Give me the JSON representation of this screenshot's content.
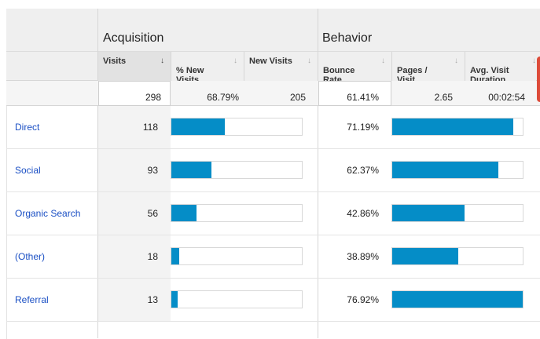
{
  "groups": {
    "acquisition": "Acquisition",
    "behavior": "Behavior"
  },
  "columns": {
    "visits": "Visits",
    "pct_new_visits": "% New\nVisits",
    "new_visits": "New Visits",
    "bounce_rate": "Bounce\nRate",
    "pages_visit": "Pages /\nVisit",
    "avg_visit_duration": "Avg. Visit\nDuration"
  },
  "totals": {
    "visits": "298",
    "pct_new_visits": "68.79%",
    "new_visits": "205",
    "bounce_rate": "61.41%",
    "pages_visit": "2.65",
    "avg_visit_duration": "00:02:54"
  },
  "rows": [
    {
      "label": "Direct",
      "visits": "118",
      "new_visits_share": 0.41,
      "bounce_rate": "71.19%",
      "bounce_share": 0.925
    },
    {
      "label": "Social",
      "visits": "93",
      "new_visits_share": 0.31,
      "bounce_rate": "62.37%",
      "bounce_share": 0.811
    },
    {
      "label": "Organic Search",
      "visits": "56",
      "new_visits_share": 0.19,
      "bounce_rate": "42.86%",
      "bounce_share": 0.557
    },
    {
      "label": "(Other)",
      "visits": "18",
      "new_visits_share": 0.06,
      "bounce_rate": "38.89%",
      "bounce_share": 0.506
    },
    {
      "label": "Referral",
      "visits": "13",
      "new_visits_share": 0.05,
      "bounce_rate": "76.92%",
      "bounce_share": 1.0
    }
  ],
  "colors": {
    "bar": "#058dc7",
    "link": "#1a4fc4",
    "header_bg": "#efefef",
    "sorted_header_bg": "#e2e2e2",
    "accent_tab": "#dd4b39"
  },
  "icons": {
    "sort_active": "arrow-down-icon",
    "sort_inactive": "sort-arrow-icon"
  }
}
